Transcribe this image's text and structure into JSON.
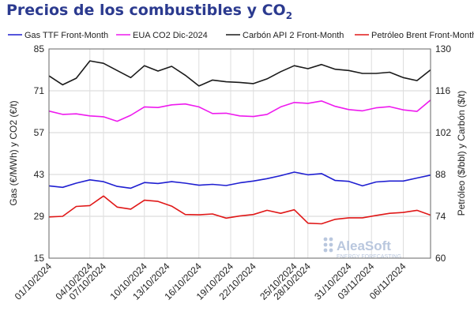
{
  "chart_data": {
    "type": "line",
    "title": "Precios de los combustibles y CO",
    "title_sub": "2",
    "xlabel": "",
    "ylabel_left": "Gas (€/MWh) y CO2 (€/t)",
    "ylabel_right": "Petróleo ($/bbl) y Carbón ($/t)",
    "ylim_left": [
      15,
      85
    ],
    "ylim_right": [
      60,
      130
    ],
    "yticks_left": [
      "15",
      "29",
      "43",
      "57",
      "71",
      "85"
    ],
    "yticks_right": [
      "60",
      "74",
      "88",
      "102",
      "116",
      "130"
    ],
    "grid": true,
    "legend_position": "top",
    "x": [
      "01/10/2024",
      "02/10/2024",
      "03/10/2024",
      "04/10/2024",
      "07/10/2024",
      "08/10/2024",
      "09/10/2024",
      "10/10/2024",
      "11/10/2024",
      "14/10/2024",
      "15/10/2024",
      "16/10/2024",
      "17/10/2024",
      "18/10/2024",
      "21/10/2024",
      "22/10/2024",
      "23/10/2024",
      "24/10/2024",
      "25/10/2024",
      "28/10/2024",
      "29/10/2024",
      "30/10/2024",
      "31/10/2024",
      "01/11/2024",
      "04/11/2024",
      "05/11/2024",
      "06/11/2024",
      "07/11/2024",
      "08/11/2024"
    ],
    "xtick_labels": [
      "01/10/2024",
      "04/10/2024",
      "07/10/2024",
      "10/10/2024",
      "13/10/2024",
      "16/10/2024",
      "19/10/2024",
      "22/10/2024",
      "25/10/2024",
      "28/10/2024",
      "31/10/2024",
      "03/11/2024",
      "06/11/2024"
    ],
    "series": [
      {
        "name": "Gas TTF Front-Month",
        "axis": "left",
        "color": "#1f1fd1",
        "values": [
          39.2,
          38.7,
          40.1,
          41.2,
          40.6,
          39.0,
          38.4,
          40.3,
          40.0,
          40.6,
          40.1,
          39.4,
          39.7,
          39.3,
          40.2,
          40.8,
          41.6,
          42.6,
          43.8,
          42.9,
          43.3,
          41.0,
          40.7,
          39.2,
          40.5,
          40.8,
          40.8,
          41.8,
          42.8
        ]
      },
      {
        "name": "EUA CO2 Dic-2024",
        "axis": "left",
        "color": "#ee1aee",
        "values": [
          64.2,
          63.1,
          63.3,
          62.6,
          62.3,
          60.8,
          62.8,
          65.6,
          65.4,
          66.3,
          66.6,
          65.6,
          63.4,
          63.5,
          62.6,
          62.4,
          63.1,
          65.6,
          67.1,
          66.8,
          67.6,
          65.8,
          64.7,
          64.3,
          65.3,
          65.7,
          64.6,
          64.1,
          67.9
        ]
      },
      {
        "name": "Carbón API 2 Front-Month",
        "axis": "right",
        "color": "#1a1a1a",
        "values": [
          121.0,
          118.0,
          120.2,
          126.0,
          125.2,
          122.8,
          120.4,
          124.4,
          122.6,
          124.2,
          121.2,
          117.6,
          119.6,
          119.0,
          118.8,
          118.4,
          120.0,
          122.4,
          124.4,
          123.4,
          124.8,
          123.2,
          122.8,
          121.8,
          121.8,
          122.2,
          120.4,
          119.4,
          123.0
        ]
      },
      {
        "name": "Petróleo Brent Front-Month",
        "axis": "right",
        "color": "#e01818",
        "values": [
          73.8,
          74.0,
          77.3,
          77.6,
          80.8,
          77.1,
          76.4,
          79.4,
          79.0,
          77.4,
          74.6,
          74.5,
          74.8,
          73.4,
          74.1,
          74.6,
          76.0,
          75.0,
          76.2,
          71.7,
          71.5,
          73.0,
          73.5,
          73.5,
          74.3,
          75.0,
          75.3,
          76.0,
          74.4
        ]
      }
    ]
  },
  "watermark": {
    "brand": "AleaSoft",
    "tagline": "ENERGY FORECASTING"
  }
}
